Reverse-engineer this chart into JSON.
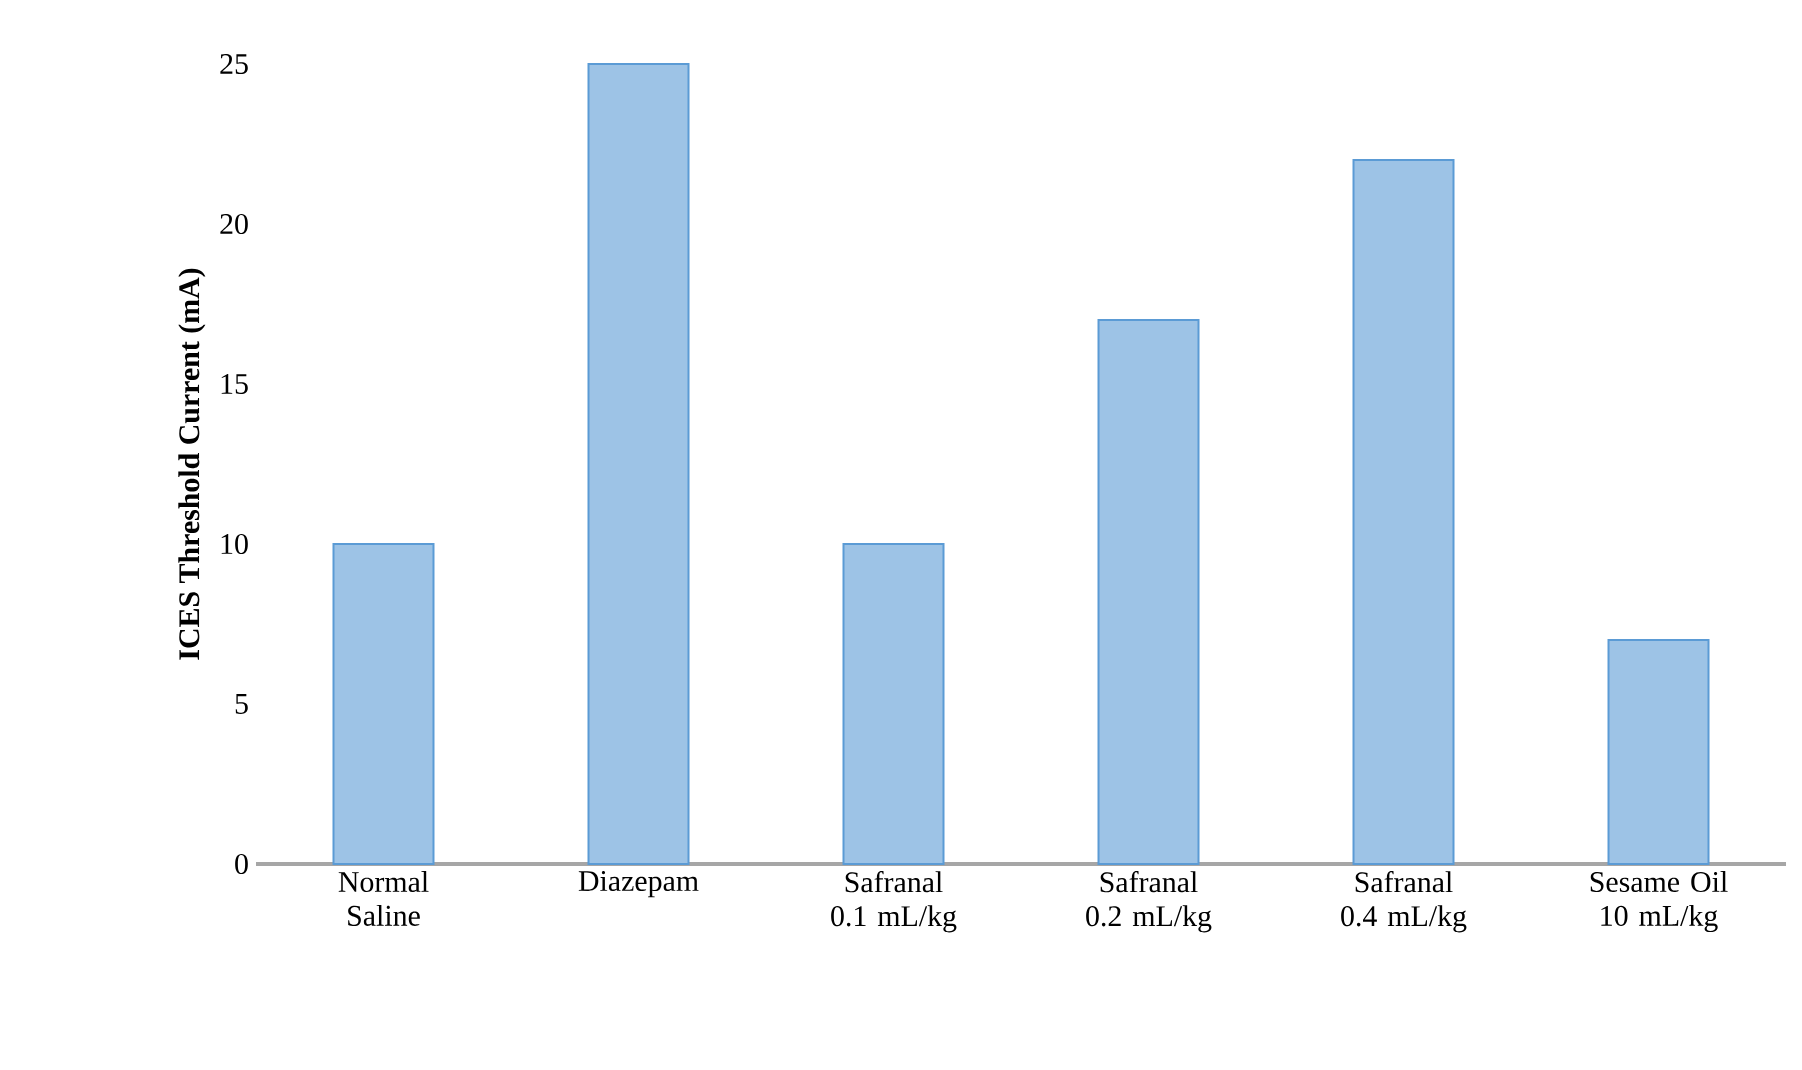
{
  "chart_data": {
    "type": "bar",
    "ylabel": "ICES Threshold Current (mA)",
    "categories": [
      "Normal Saline",
      "Diazepam",
      "Safranal 0.1 mL/kg",
      "Safranal 0.2 mL/kg",
      "Safranal 0.4 mL/kg",
      "Sesame Oil 10 mL/kg"
    ],
    "values": [
      10,
      25,
      10,
      17,
      22,
      7
    ],
    "color": "#9dc3e6",
    "ylim": [
      0,
      25
    ],
    "yticks": [
      0,
      5,
      10,
      15,
      20,
      25
    ]
  }
}
